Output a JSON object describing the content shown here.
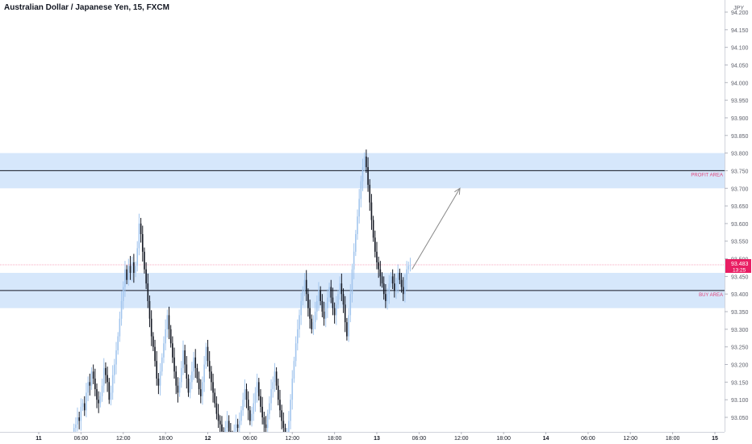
{
  "chart_data": {
    "type": "candlestick",
    "title": "Australian Dollar / Japanese Yen, 15, FXCM",
    "currency": "JPY",
    "ylim": [
      93.01,
      94.21
    ],
    "y_ticks": [
      94.2,
      94.15,
      94.1,
      94.05,
      94.0,
      93.95,
      93.9,
      93.85,
      93.8,
      93.75,
      93.7,
      93.65,
      93.6,
      93.55,
      93.5,
      93.45,
      93.4,
      93.35,
      93.3,
      93.25,
      93.2,
      93.15,
      93.1,
      93.05
    ],
    "y_tick_labels": [
      "94.200",
      "94.150",
      "94.100",
      "94.050",
      "94.000",
      "93.950",
      "93.900",
      "93.850",
      "93.800",
      "93.750",
      "93.700",
      "93.650",
      "93.600",
      "93.550",
      "93.500",
      "93.450",
      "93.400",
      "93.350",
      "93.300",
      "93.250",
      "93.200",
      "93.150",
      "93.100",
      "93.050"
    ],
    "x_ticks": [
      {
        "label": "11",
        "day": 0,
        "hour": 0,
        "bold": true
      },
      {
        "label": "06:00",
        "day": 0,
        "hour": 6
      },
      {
        "label": "12:00",
        "day": 0,
        "hour": 12
      },
      {
        "label": "18:00",
        "day": 0,
        "hour": 18
      },
      {
        "label": "12",
        "day": 1,
        "hour": 0,
        "bold": true
      },
      {
        "label": "06:00",
        "day": 1,
        "hour": 6
      },
      {
        "label": "12:00",
        "day": 1,
        "hour": 12
      },
      {
        "label": "18:00",
        "day": 1,
        "hour": 18
      },
      {
        "label": "13",
        "day": 2,
        "hour": 0,
        "bold": true
      },
      {
        "label": "06:00",
        "day": 2,
        "hour": 6
      },
      {
        "label": "12:00",
        "day": 2,
        "hour": 12
      },
      {
        "label": "18:00",
        "day": 2,
        "hour": 18
      },
      {
        "label": "14",
        "day": 3,
        "hour": 0,
        "bold": true
      },
      {
        "label": "06:00",
        "day": 3,
        "hour": 6
      },
      {
        "label": "12:00",
        "day": 3,
        "hour": 12
      },
      {
        "label": "18:00",
        "day": 3,
        "hour": 18
      },
      {
        "label": "15",
        "day": 4,
        "hour": 0,
        "bold": true
      }
    ],
    "zones": [
      {
        "name": "PROFIT AREA",
        "low": 93.7,
        "high": 93.8,
        "line": 93.75
      },
      {
        "name": "BUY AREA",
        "low": 93.36,
        "high": 93.46,
        "line": 93.41
      }
    ],
    "last_price": "93.483",
    "countdown": "13:25",
    "last_price_value": 93.483,
    "projection": {
      "from": {
        "day": 2,
        "hour": 5,
        "price": 93.47
      },
      "to": {
        "day": 2,
        "hour": 11.8,
        "price": 93.7
      }
    },
    "series": [
      {
        "name": "candles",
        "start": {
          "day": 0,
          "hour": 5
        },
        "interval_minutes": 15,
        "close": [
          93.02,
          93.03,
          93.05,
          93.04,
          93.08,
          93.09,
          93.07,
          93.12,
          93.15,
          93.14,
          93.18,
          93.16,
          93.13,
          93.1,
          93.09,
          93.11,
          93.14,
          93.19,
          93.17,
          93.15,
          93.1,
          93.12,
          93.17,
          93.2,
          93.24,
          93.28,
          93.33,
          93.38,
          93.42,
          93.47,
          93.44,
          93.48,
          93.46,
          93.49,
          93.46,
          93.48,
          93.53,
          93.6,
          93.57,
          93.52,
          93.47,
          93.43,
          93.38,
          93.33,
          93.28,
          93.25,
          93.21,
          93.16,
          93.14,
          93.18,
          93.22,
          93.26,
          93.3,
          93.34,
          93.3,
          93.26,
          93.22,
          93.18,
          93.14,
          93.12,
          93.15,
          93.19,
          93.24,
          93.2,
          93.16,
          93.12,
          93.15,
          93.18,
          93.22,
          93.19,
          93.16,
          93.13,
          93.11,
          93.15,
          93.2,
          93.25,
          93.21,
          93.18,
          93.15,
          93.12,
          93.09,
          93.06,
          93.04,
          93.03,
          93.01,
          93.0,
          93.02,
          93.04,
          93.01,
          93.0,
          92.99,
          93.01,
          93.03,
          93.02,
          93.04,
          93.07,
          93.1,
          93.13,
          93.1,
          93.07,
          93.04,
          93.06,
          93.09,
          93.12,
          93.15,
          93.11,
          93.08,
          93.05,
          93.03,
          93.02,
          93.06,
          93.09,
          93.13,
          93.15,
          93.18,
          93.14,
          93.1,
          93.07,
          93.04,
          93.02,
          92.98,
          93.0,
          93.04,
          93.1,
          93.16,
          93.21,
          93.26,
          93.3,
          93.34,
          93.38,
          93.41,
          93.44,
          93.4,
          93.36,
          93.33,
          93.3,
          93.32,
          93.35,
          93.38,
          93.41,
          93.38,
          93.35,
          93.33,
          93.36,
          93.39,
          93.42,
          93.39,
          93.36,
          93.34,
          93.37,
          93.4,
          93.43,
          93.4,
          93.37,
          93.32,
          93.28,
          93.34,
          93.4,
          93.47,
          93.52,
          93.57,
          93.62,
          93.67,
          93.72,
          93.76,
          93.79,
          93.76,
          93.71,
          93.66,
          93.61,
          93.56,
          93.52,
          93.49,
          93.47,
          93.45,
          93.43,
          93.4,
          93.38,
          93.4,
          93.43,
          93.45,
          93.43,
          93.41,
          93.43,
          93.46,
          93.44,
          93.42,
          93.4,
          93.44,
          93.47,
          93.48,
          93.483
        ]
      }
    ]
  }
}
